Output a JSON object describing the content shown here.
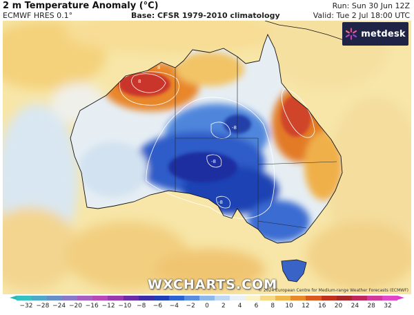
{
  "header": {
    "title": "2 m Temperature Anomaly (°C)",
    "model": "ECMWF HRES 0.1°",
    "base": "Base: CFSR 1979-2010 climatology",
    "run": "Run: Sun 30 Jun 12Z",
    "valid": "Valid: Tue 2 Jul 18:00 UTC"
  },
  "logo": {
    "text": "metdesk",
    "icon": "metdesk-star-icon"
  },
  "watermark": "WXCHARTS.COM",
  "credit": "© 2024 European Centre for Medium-range Weather Forecasts (ECMWF)",
  "map": {
    "region": "Australia",
    "contour_labels": [
      "-8",
      "-8",
      "-8",
      "8",
      "8"
    ]
  },
  "colorbar": {
    "ticks": [
      "−32",
      "−28",
      "−24",
      "−20",
      "−16",
      "−12",
      "−10",
      "−8",
      "−6",
      "−4",
      "−2",
      "0",
      "2",
      "4",
      "6",
      "8",
      "10",
      "12",
      "16",
      "20",
      "24",
      "28",
      "32"
    ],
    "colors": [
      "#36c0c0",
      "#4fa8c8",
      "#6890c8",
      "#8a78c8",
      "#a45fc0",
      "#b848b8",
      "#9a38b0",
      "#6c2ca8",
      "#3a2fa8",
      "#1f3fb8",
      "#2d62d2",
      "#5a8de0",
      "#8fb8ea",
      "#c0d8f2",
      "#eaf2f8",
      "#fbf2c8",
      "#f6d985",
      "#f0b84a",
      "#e98a2a",
      "#d95a1e",
      "#c2321a",
      "#a82828",
      "#c02a5a",
      "#d03a9a",
      "#e048c8"
    ]
  }
}
